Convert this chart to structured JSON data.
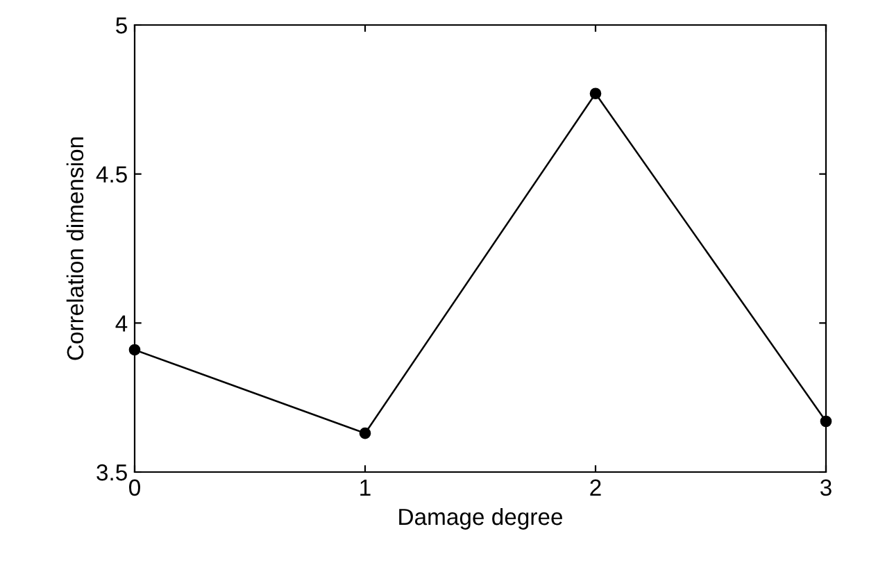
{
  "chart_data": {
    "type": "line",
    "xlabel": "Damage degree",
    "ylabel": "Correlation dimension",
    "x": [
      0,
      1,
      2,
      3
    ],
    "series": [
      {
        "color": "#000000",
        "values": [
          3.91,
          3.63,
          4.77,
          3.67
        ]
      }
    ],
    "xlim": [
      0,
      3
    ],
    "xticks": [
      0,
      1,
      2,
      3
    ],
    "ylim": [
      3.5,
      5
    ],
    "yticks": [
      3.5,
      4,
      4.5,
      5
    ],
    "grid": false,
    "legend": false,
    "marker": "circle",
    "line_style": "solid"
  }
}
